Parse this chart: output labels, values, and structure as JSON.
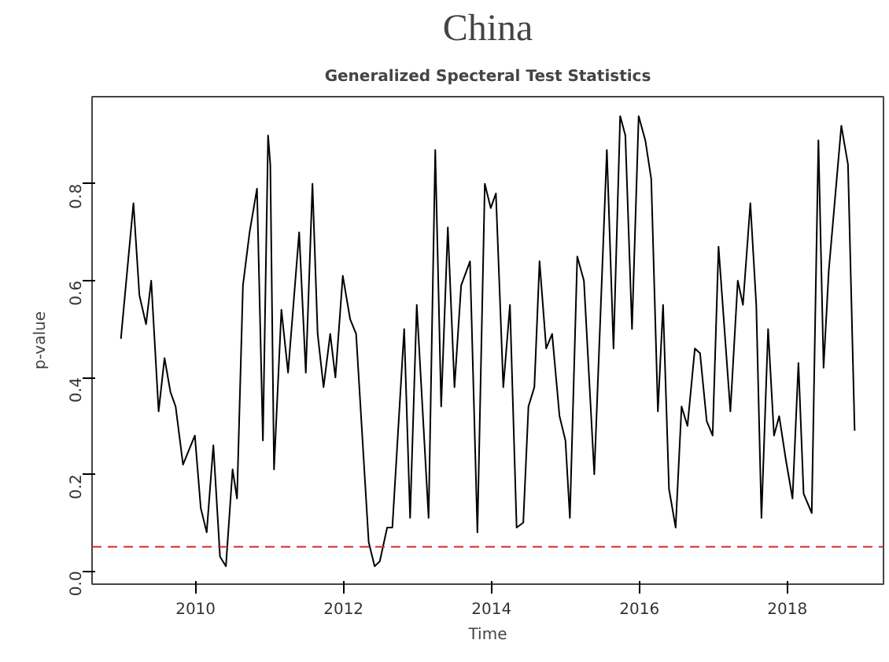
{
  "chart_data": {
    "type": "line",
    "title": "China",
    "subtitle": "Generalized Specteral Test Statistics",
    "xlabel": "Time",
    "ylabel": "p-value",
    "x": [
      2008.99,
      2009.16,
      2009.24,
      2009.33,
      2009.4,
      2009.5,
      2009.58,
      2009.66,
      2009.73,
      2009.83,
      2009.99,
      2010.07,
      2010.15,
      2010.24,
      2010.33,
      2010.41,
      2010.5,
      2010.56,
      2010.64,
      2010.73,
      2010.83,
      2010.91,
      2010.98,
      2011.01,
      2011.06,
      2011.16,
      2011.25,
      2011.4,
      2011.49,
      2011.58,
      2011.65,
      2011.73,
      2011.82,
      2011.89,
      2011.99,
      2012.09,
      2012.17,
      2012.34,
      2012.42,
      2012.49,
      2012.59,
      2012.66,
      2012.82,
      2012.9,
      2012.99,
      2013.15,
      2013.24,
      2013.32,
      2013.41,
      2013.5,
      2013.59,
      2013.71,
      2013.81,
      2013.91,
      2013.99,
      2014.06,
      2014.16,
      2014.25,
      2014.34,
      2014.43,
      2014.5,
      2014.58,
      2014.65,
      2014.74,
      2014.82,
      2014.92,
      2015.0,
      2015.06,
      2015.16,
      2015.25,
      2015.39,
      2015.56,
      2015.65,
      2015.74,
      2015.81,
      2015.9,
      2015.99,
      2016.08,
      2016.16,
      2016.25,
      2016.32,
      2016.4,
      2016.49,
      2016.57,
      2016.65,
      2016.75,
      2016.82,
      2016.91,
      2016.99,
      2017.07,
      2017.23,
      2017.33,
      2017.4,
      2017.5,
      2017.58,
      2017.65,
      2017.74,
      2017.82,
      2017.89,
      2017.98,
      2018.07,
      2018.15,
      2018.22,
      2018.33,
      2018.42,
      2018.49,
      2018.56,
      2018.73,
      2018.82,
      2018.91
    ],
    "series": [
      {
        "color": "#000000",
        "values": [
          0.48,
          0.76,
          0.57,
          0.51,
          0.6,
          0.33,
          0.44,
          0.37,
          0.34,
          0.22,
          0.28,
          0.13,
          0.08,
          0.26,
          0.03,
          0.01,
          0.21,
          0.15,
          0.59,
          0.7,
          0.79,
          0.27,
          0.9,
          0.84,
          0.21,
          0.54,
          0.41,
          0.7,
          0.41,
          0.8,
          0.49,
          0.38,
          0.49,
          0.4,
          0.61,
          0.52,
          0.49,
          0.06,
          0.01,
          0.02,
          0.09,
          0.09,
          0.5,
          0.11,
          0.55,
          0.11,
          0.87,
          0.34,
          0.71,
          0.38,
          0.59,
          0.64,
          0.08,
          0.8,
          0.75,
          0.78,
          0.38,
          0.55,
          0.09,
          0.1,
          0.34,
          0.38,
          0.64,
          0.46,
          0.49,
          0.32,
          0.27,
          0.11,
          0.65,
          0.6,
          0.2,
          0.87,
          0.46,
          0.94,
          0.9,
          0.5,
          0.94,
          0.89,
          0.81,
          0.33,
          0.55,
          0.17,
          0.09,
          0.34,
          0.3,
          0.46,
          0.45,
          0.31,
          0.28,
          0.67,
          0.33,
          0.6,
          0.55,
          0.76,
          0.55,
          0.11,
          0.5,
          0.28,
          0.32,
          0.23,
          0.15,
          0.43,
          0.16,
          0.12,
          0.89,
          0.42,
          0.62,
          0.92,
          0.84,
          0.29
        ]
      }
    ],
    "xlim": [
      2008.6,
      2019.3
    ],
    "ylim": [
      -0.027,
      0.98
    ],
    "xticks": [
      2010,
      2012,
      2014,
      2016,
      2018
    ],
    "yticks": [
      {
        "value": 0,
        "label": "0.0"
      },
      {
        "value": 0.2,
        "label": "0.2"
      },
      {
        "value": 0.4,
        "label": "0.4"
      },
      {
        "value": 0.6,
        "label": "0.6"
      },
      {
        "value": 0.8,
        "label": "0.8"
      }
    ],
    "ref_lines": [
      {
        "axis": "y",
        "value": 0.05,
        "color": "#d62728",
        "line_style": "dashed"
      }
    ],
    "grid": false,
    "line_style": "solid"
  }
}
